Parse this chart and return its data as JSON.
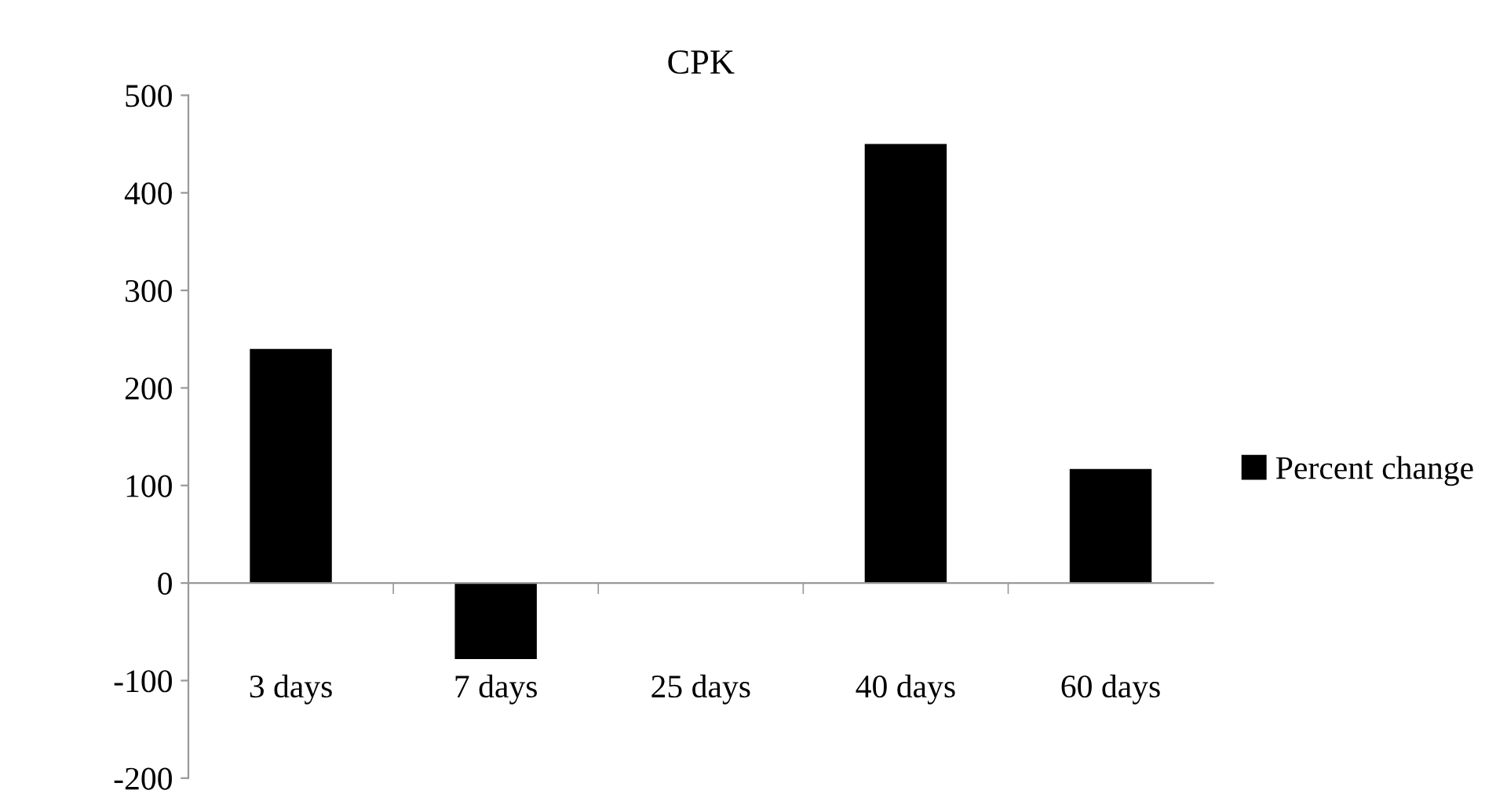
{
  "chart_data": {
    "type": "bar",
    "title": "CPK",
    "categories": [
      "3 days",
      "7 days",
      "25 days",
      "40 days",
      "60 days"
    ],
    "series": [
      {
        "name": "Percent change",
        "color": "#000000",
        "values": [
          240,
          -78,
          0,
          450,
          117
        ]
      }
    ],
    "ylim": [
      -200,
      500
    ],
    "yticks": [
      -200,
      -100,
      0,
      100,
      200,
      300,
      400,
      500
    ],
    "legend": "right"
  }
}
